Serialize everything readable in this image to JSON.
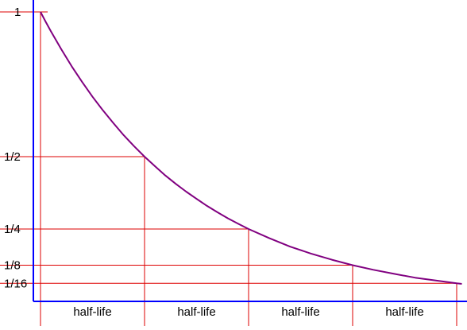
{
  "chart_data": {
    "type": "line",
    "title": "",
    "xlabel": "",
    "ylabel": "",
    "x_unit": "half-life",
    "xlim": [
      0,
      4.05
    ],
    "ylim": [
      0,
      1.062
    ],
    "y_ticks": [
      {
        "value": 1,
        "label": "1"
      },
      {
        "value": 0.5,
        "label": "1/2"
      },
      {
        "value": 0.25,
        "label": "1/4"
      },
      {
        "value": 0.125,
        "label": "1/8"
      },
      {
        "value": 0.0625,
        "label": "1/16"
      }
    ],
    "x_markers": [
      0,
      1,
      2,
      3,
      4
    ],
    "interval_labels": [
      "half-life",
      "half-life",
      "half-life",
      "half-life"
    ],
    "series": [
      {
        "x": [
          0,
          0.05,
          0.1,
          0.2,
          0.3,
          0.4,
          0.5,
          0.6,
          0.7,
          0.8,
          0.9,
          1.0,
          1.1,
          1.2,
          1.3,
          1.4,
          1.5,
          1.6,
          1.7,
          1.8,
          1.9,
          2.0,
          2.2,
          2.4,
          2.6,
          2.8,
          3.0,
          3.2,
          3.4,
          3.6,
          3.8,
          4.0,
          4.05
        ],
        "y": [
          1,
          0.966,
          0.933,
          0.871,
          0.812,
          0.758,
          0.707,
          0.66,
          0.616,
          0.574,
          0.536,
          0.5,
          0.467,
          0.435,
          0.406,
          0.379,
          0.354,
          0.33,
          0.308,
          0.287,
          0.268,
          0.25,
          0.218,
          0.189,
          0.165,
          0.144,
          0.125,
          0.109,
          0.095,
          0.082,
          0.072,
          0.0625,
          0.0604
        ]
      }
    ],
    "colors": {
      "curve": "#800080",
      "axes": "#0000ff",
      "guides": "#dd0000",
      "text": "#000000"
    }
  }
}
